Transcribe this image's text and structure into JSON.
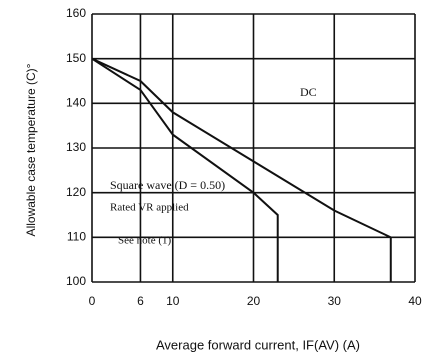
{
  "chart_data": {
    "type": "line",
    "x_label": "Average forward current, IF(AV) (A)",
    "y_label": "Allowable case temperature (C)°",
    "series": [
      {
        "name": "DC",
        "color": "#111111",
        "x": [
          0,
          6,
          10,
          20,
          30,
          37,
          37
        ],
        "values": [
          150,
          145,
          138,
          127,
          116,
          110,
          100
        ]
      },
      {
        "name": "Square wave (D = 0.50)",
        "color": "#111111",
        "x": [
          0,
          6,
          10,
          20,
          23,
          23
        ],
        "values": [
          150,
          143,
          133,
          120,
          115,
          100
        ]
      }
    ],
    "annotations": [
      "Rated VR applied",
      "See note (1)"
    ],
    "xlim": [
      0,
      40
    ],
    "xticks": [
      0,
      6,
      10,
      20,
      30,
      40
    ],
    "ylim": [
      100,
      160
    ],
    "yticks": [
      100,
      110,
      120,
      130,
      140,
      150,
      160
    ],
    "grid": true
  }
}
